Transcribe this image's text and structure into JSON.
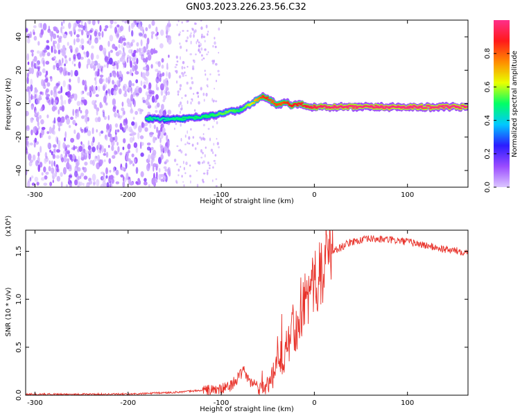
{
  "title": "GN03.2023.226.23.56.C32",
  "colors": {
    "snr_line": "#e8322a",
    "axis": "#000000",
    "colorbar_stops": [
      "#dcc6ff",
      "#9a4bff",
      "#2b1cff",
      "#00c8ff",
      "#00ff66",
      "#e8ff00",
      "#ff8c00",
      "#ff1a1a",
      "#ff2e8a"
    ]
  },
  "chart_data": [
    {
      "type": "heatmap",
      "name": "spectrogram",
      "xlabel": "Height of straight line (km)",
      "ylabel": "Frequency (Hz)",
      "xlim": [
        -310,
        165
      ],
      "ylim": [
        -50,
        50
      ],
      "xticks": [
        -300,
        -200,
        -100,
        0,
        100
      ],
      "yticks": [
        -40,
        -20,
        0,
        20,
        40
      ],
      "colorbar": {
        "label": "Normalized spectral amplitude",
        "range": [
          0.0,
          1.0
        ],
        "ticks": [
          "0.0",
          "0.2",
          "0.4",
          "0.6",
          "0.8"
        ]
      },
      "noise_region_x": [
        -310,
        -155
      ],
      "ridge_start_x": -180,
      "ridge_track": {
        "x": [
          -180,
          -170,
          -160,
          -150,
          -140,
          -130,
          -120,
          -110,
          -100,
          -90,
          -80,
          -70,
          -60,
          -55,
          -50,
          -45,
          -40,
          -35,
          -30,
          -25,
          -20,
          -15,
          -10,
          -5,
          0,
          20,
          40,
          60,
          80,
          90,
          100,
          120,
          140,
          160,
          165
        ],
        "y": [
          -9,
          -9,
          -9.5,
          -9,
          -9,
          -8.5,
          -8,
          -7,
          -6,
          -4.5,
          -4,
          -1,
          3,
          4,
          3,
          1,
          -1,
          0,
          1,
          -1,
          -0.5,
          0,
          -1,
          -2,
          -2,
          -2,
          -2,
          -2,
          -2,
          -2,
          -2,
          -2,
          -2,
          -2,
          -2
        ],
        "amplitude": [
          0.5,
          0.45,
          0.45,
          0.48,
          0.5,
          0.5,
          0.5,
          0.5,
          0.55,
          0.55,
          0.5,
          0.6,
          0.75,
          0.85,
          0.85,
          0.8,
          0.82,
          0.8,
          0.85,
          0.88,
          0.88,
          0.9,
          0.9,
          0.92,
          0.94,
          0.98,
          0.98,
          0.98,
          0.99,
          0.99,
          0.99,
          0.99,
          0.99,
          0.99,
          0.99
        ]
      }
    },
    {
      "type": "line",
      "name": "snr",
      "xlabel": "Height of straight line (km)",
      "ylabel": "SNR (10 * v/v)",
      "y_multiplier": "(x10⁴)",
      "xlim": [
        -310,
        165
      ],
      "ylim": [
        0,
        1.72
      ],
      "xticks": [
        -300,
        -200,
        -100,
        0,
        100
      ],
      "yticks": [
        "0.0",
        "0.5",
        "1.0",
        "1.5"
      ],
      "envelope": {
        "x": [
          -310,
          -200,
          -150,
          -120,
          -100,
          -90,
          -80,
          -75,
          -70,
          -60,
          -50,
          -40,
          -30,
          -20,
          -10,
          0,
          20,
          40,
          60,
          80,
          100,
          120,
          140,
          165
        ],
        "y": [
          0.01,
          0.01,
          0.03,
          0.05,
          0.06,
          0.1,
          0.2,
          0.26,
          0.14,
          0.1,
          0.06,
          0.3,
          0.52,
          0.76,
          1.0,
          1.15,
          1.5,
          1.6,
          1.63,
          1.62,
          1.6,
          1.56,
          1.52,
          1.49
        ]
      }
    }
  ]
}
